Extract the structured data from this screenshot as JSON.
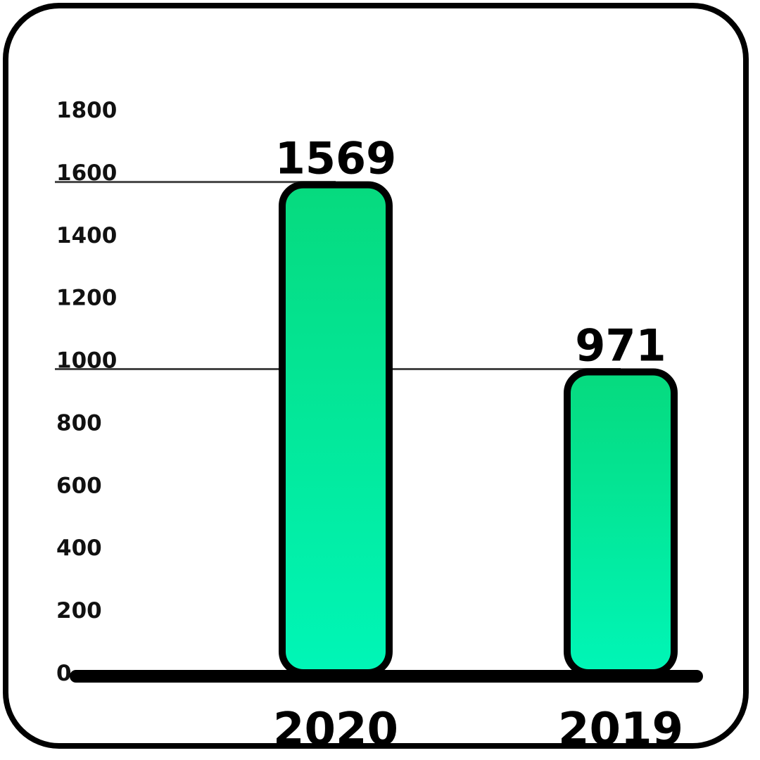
{
  "chart_data": {
    "type": "bar",
    "categories": [
      "2020",
      "2019"
    ],
    "values": [
      1569,
      971
    ],
    "data_labels": [
      "1569",
      "971"
    ],
    "ylim": [
      0,
      1800
    ],
    "yticks": [
      "0",
      "200",
      "400",
      "600",
      "800",
      "1000",
      "1200",
      "1400",
      "1600",
      "1800"
    ],
    "title": "",
    "xlabel": "",
    "ylabel": "",
    "grid": false,
    "reference_lines": true,
    "colors": {
      "bar_top": "#06DA7E",
      "bar_bottom": "#00F6B7",
      "outline": "#000000",
      "axis": "#000000",
      "ref_line": "#444444"
    }
  }
}
